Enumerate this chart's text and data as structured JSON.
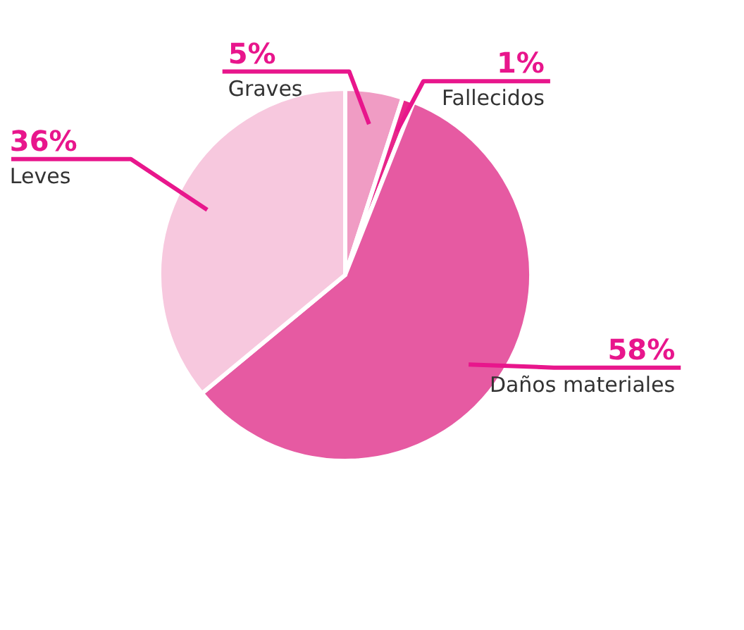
{
  "chart_data": {
    "type": "pie",
    "categories": [
      "Graves",
      "Fallecidos",
      "Daños materiales",
      "Leves"
    ],
    "values": [
      5,
      1,
      58,
      36
    ],
    "value_labels": [
      "5%",
      "1%",
      "58%",
      "36%"
    ],
    "colors": [
      "#f09cc4",
      "#e8258a",
      "#e65aa2",
      "#f7c8de"
    ],
    "legend": false
  }
}
